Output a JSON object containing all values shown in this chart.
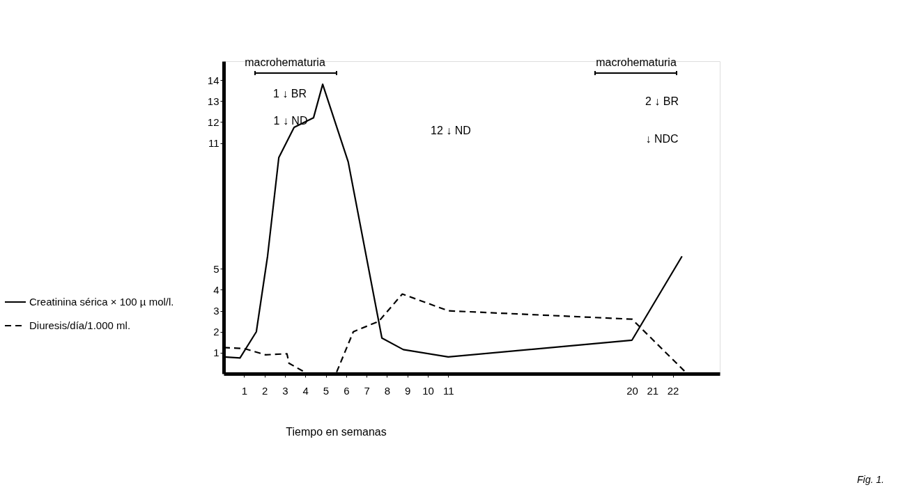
{
  "chart_data": {
    "type": "line",
    "xlabel": "Tiempo en semanas",
    "series": [
      {
        "name": "Creatinina sérica × 100 µ mol/l.",
        "color": "#000000",
        "line_style": "solid",
        "x": [
          0,
          0.8,
          1.6,
          2.15,
          2.7,
          3.45,
          4.4,
          4.85,
          6.1,
          7.75,
          8.8,
          11.0,
          20.0,
          22.45
        ],
        "values": [
          0.8,
          0.75,
          2.0,
          5.6,
          10.3,
          11.75,
          12.2,
          13.8,
          10.1,
          1.7,
          1.15,
          0.8,
          1.6,
          5.6
        ]
      },
      {
        "name": "Diuresis/día/1.000 ml.",
        "color": "#000000",
        "line_style": "dashed",
        "x": [
          0,
          1.0,
          2.05,
          3.1,
          3.2,
          4.1,
          5.5,
          6.35,
          7.6,
          8.75,
          11.0,
          20.0,
          22.7
        ],
        "values": [
          1.25,
          1.2,
          0.9,
          0.95,
          0.5,
          0,
          0,
          2.0,
          2.5,
          3.8,
          3.0,
          2.6,
          0
        ]
      }
    ],
    "xlim": [
      0,
      24.3
    ],
    "xticks": [
      1,
      2,
      3,
      4,
      5,
      6,
      7,
      8,
      9,
      10,
      11,
      20,
      21,
      22
    ],
    "ylim": [
      0,
      14.9
    ],
    "yticks": [
      1,
      2,
      3,
      4,
      5,
      11,
      12,
      13,
      14
    ],
    "grid": false,
    "legend": "left",
    "marker": "none",
    "annotations": [
      "macrohematuria",
      "macrohematuria",
      "1 ↓ BR",
      "1 ↓ ND",
      "12 ↓ ND",
      "2 ↓ BR",
      "↓ NDC",
      "Fig. 1."
    ]
  }
}
